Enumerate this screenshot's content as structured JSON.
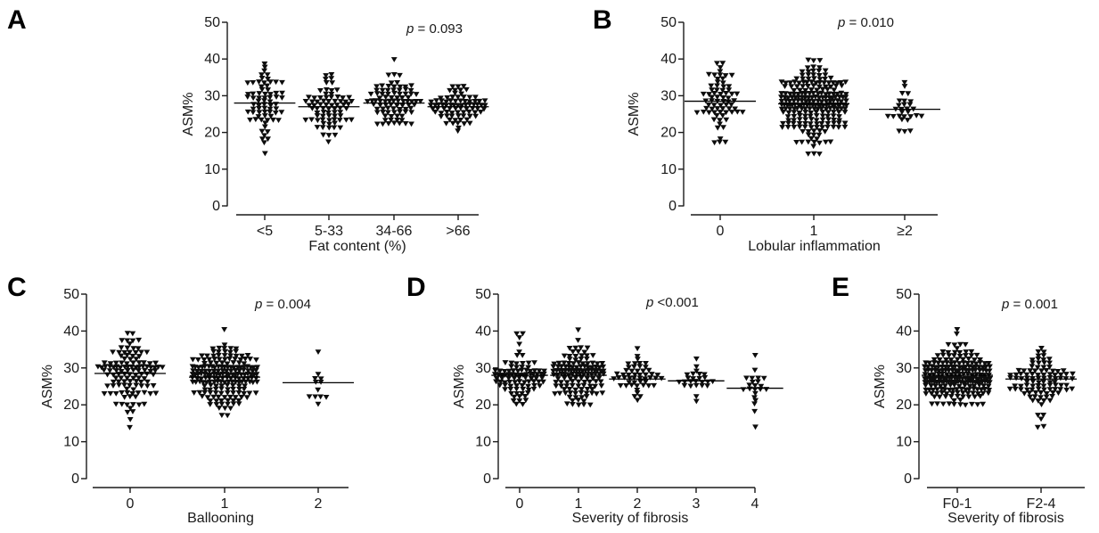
{
  "chart_data": [
    {
      "type": "scatter",
      "panel": "A",
      "ylabel": "ASM%",
      "xlabel": "Fat content (%)",
      "ylim": [
        0,
        50
      ],
      "yticks": [
        0,
        10,
        20,
        30,
        40,
        50
      ],
      "categories": [
        "<5",
        "5-33",
        "34-66",
        ">66"
      ],
      "p_prefix": "p",
      "p_rest": " = 0.093",
      "groups": [
        {
          "n": 70,
          "min": 14.5,
          "max": 39,
          "mean": 28
        },
        {
          "n": 75,
          "min": 17,
          "max": 36,
          "mean": 27
        },
        {
          "n": 85,
          "min": 22,
          "max": 40,
          "mean": 28
        },
        {
          "n": 80,
          "min": 20,
          "max": 33,
          "mean": 27
        }
      ]
    },
    {
      "type": "scatter",
      "panel": "B",
      "ylabel": "ASM%",
      "xlabel": "Lobular inflammation",
      "ylim": [
        0,
        50
      ],
      "yticks": [
        0,
        10,
        20,
        30,
        40,
        50
      ],
      "categories": [
        "0",
        "1",
        "≥2"
      ],
      "p_prefix": "p",
      "p_rest": " = 0.010",
      "groups": [
        {
          "n": 70,
          "min": 17,
          "max": 39,
          "mean": 28.5
        },
        {
          "n": 230,
          "min": 14.5,
          "max": 40,
          "mean": 27.8
        },
        {
          "n": 28,
          "min": 20,
          "max": 34,
          "mean": 26.3
        }
      ]
    },
    {
      "type": "scatter",
      "panel": "C",
      "ylabel": "ASM%",
      "xlabel": "Ballooning",
      "ylim": [
        0,
        50
      ],
      "yticks": [
        0,
        10,
        20,
        30,
        40,
        50
      ],
      "categories": [
        "0",
        "1",
        "2"
      ],
      "p_prefix": "p",
      "p_rest": " = 0.004",
      "groups": [
        {
          "n": 120,
          "min": 14.5,
          "max": 39,
          "mean": 28.5
        },
        {
          "n": 190,
          "min": 17,
          "max": 40,
          "mean": 27.5
        },
        {
          "n": 12,
          "min": 20,
          "max": 34,
          "mean": 26
        }
      ]
    },
    {
      "type": "scatter",
      "panel": "D",
      "ylabel": "ASM%",
      "xlabel": "Severity of fibrosis",
      "ylim": [
        0,
        50
      ],
      "yticks": [
        0,
        10,
        20,
        30,
        40,
        50
      ],
      "categories": [
        "0",
        "1",
        "2",
        "3",
        "4"
      ],
      "p_prefix": "p",
      "p_rest": " <0.001",
      "groups": [
        {
          "n": 90,
          "min": 20,
          "max": 39.5,
          "mean": 28
        },
        {
          "n": 130,
          "min": 20,
          "max": 40,
          "mean": 28
        },
        {
          "n": 50,
          "min": 21,
          "max": 35,
          "mean": 27
        },
        {
          "n": 25,
          "min": 21,
          "max": 32.5,
          "mean": 26.5
        },
        {
          "n": 22,
          "min": 14.5,
          "max": 33.5,
          "mean": 24.5
        }
      ]
    },
    {
      "type": "scatter",
      "panel": "E",
      "ylabel": "ASM%",
      "xlabel": "Severity of fibrosis",
      "ylim": [
        0,
        50
      ],
      "yticks": [
        0,
        10,
        20,
        30,
        40,
        50
      ],
      "categories": [
        "F0-1",
        "F2-4"
      ],
      "p_prefix": "p",
      "p_rest": " = 0.001",
      "groups": [
        {
          "n": 220,
          "min": 20,
          "max": 40,
          "mean": 28
        },
        {
          "n": 100,
          "min": 14.5,
          "max": 35,
          "mean": 27
        }
      ]
    }
  ],
  "colors": {
    "marker": "#0d0d0d",
    "axis": "#1a1a1a"
  }
}
